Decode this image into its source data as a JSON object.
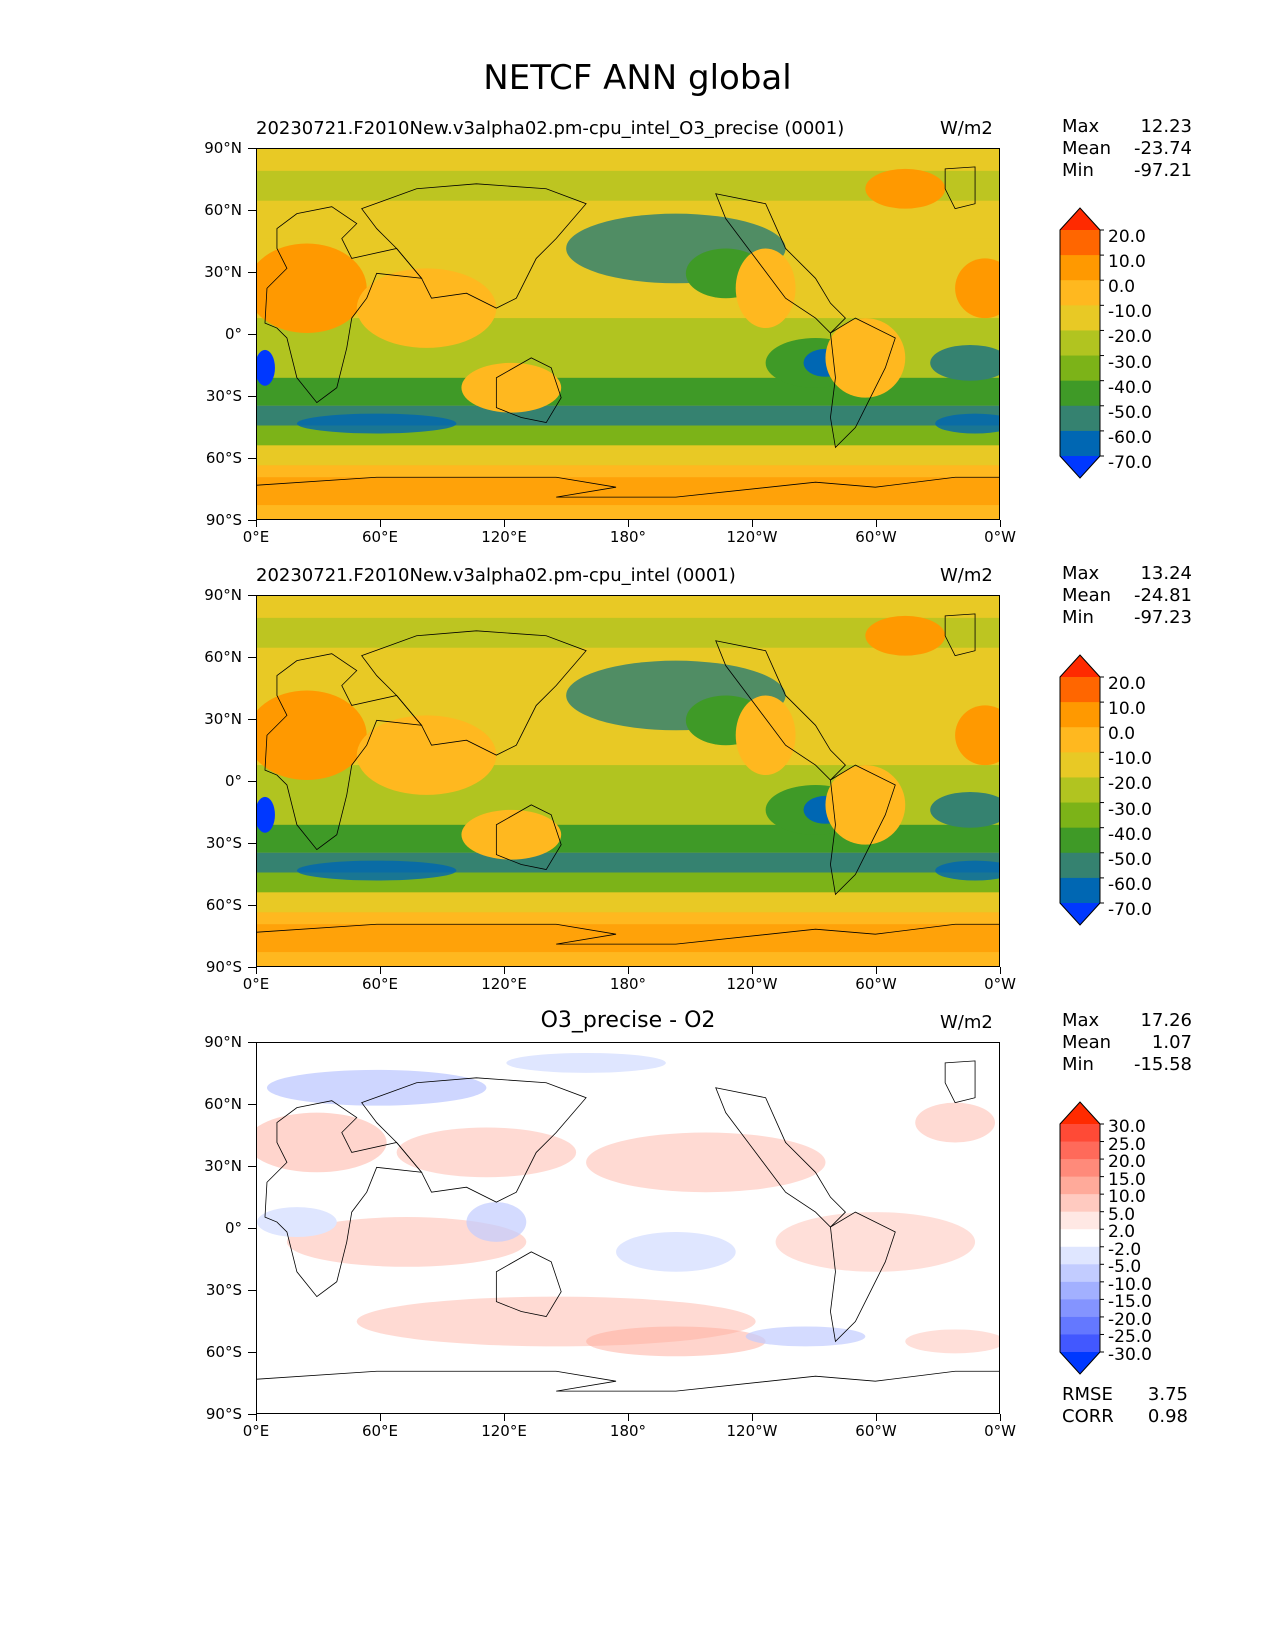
{
  "figure_title": "NETCF ANN global",
  "panels": [
    {
      "title": "20230721.F2010New.v3alpha02.pm-cpu_intel_O3_precise (0001)",
      "units": "W/m2",
      "stats": [
        {
          "label": "Max",
          "value": "12.23"
        },
        {
          "label": "Mean",
          "value": "-23.74"
        },
        {
          "label": "Min",
          "value": "-97.21"
        }
      ],
      "colorbar": {
        "labels": [
          "20.0",
          "10.0",
          "0.0",
          "-10.0",
          "-20.0",
          "-30.0",
          "-40.0",
          "-50.0",
          "-60.0",
          "-70.0"
        ],
        "colors": [
          "#ff2a00",
          "#ff6600",
          "#ff9900",
          "#ffb81f",
          "#e8c925",
          "#b1c420",
          "#7cb318",
          "#3f9a27",
          "#358270",
          "#0067b3",
          "#0038ff"
        ]
      }
    },
    {
      "title": "20230721.F2010New.v3alpha02.pm-cpu_intel (0001)",
      "units": "W/m2",
      "stats": [
        {
          "label": "Max",
          "value": "13.24"
        },
        {
          "label": "Mean",
          "value": "-24.81"
        },
        {
          "label": "Min",
          "value": "-97.23"
        }
      ],
      "colorbar": {
        "labels": [
          "20.0",
          "10.0",
          "0.0",
          "-10.0",
          "-20.0",
          "-30.0",
          "-40.0",
          "-50.0",
          "-60.0",
          "-70.0"
        ],
        "colors": [
          "#ff2a00",
          "#ff6600",
          "#ff9900",
          "#ffb81f",
          "#e8c925",
          "#b1c420",
          "#7cb318",
          "#3f9a27",
          "#358270",
          "#0067b3",
          "#0038ff"
        ]
      }
    },
    {
      "title": "O3_precise - O2",
      "units": "W/m2",
      "stats": [
        {
          "label": "Max",
          "value": "17.26"
        },
        {
          "label": "Mean",
          "value": "1.07"
        },
        {
          "label": "Min",
          "value": "-15.58"
        }
      ],
      "colorbar": {
        "labels": [
          "30.0",
          "25.0",
          "20.0",
          "15.0",
          "10.0",
          "5.0",
          "2.0",
          "-2.0",
          "-5.0",
          "-10.0",
          "-15.0",
          "-20.0",
          "-25.0",
          "-30.0"
        ],
        "colors": [
          "#ff2a00",
          "#ff4a36",
          "#ff6a5a",
          "#ff8a7a",
          "#ffaa9a",
          "#ffcac0",
          "#ffe8e4",
          "#ffffff",
          "#dfe6ff",
          "#c2ccff",
          "#a2b0ff",
          "#8494ff",
          "#6478ff",
          "#4258ff",
          "#0038ff"
        ]
      },
      "bottom_stats": [
        {
          "label": "RMSE",
          "value": "3.75"
        },
        {
          "label": "CORR",
          "value": "0.98"
        }
      ]
    }
  ],
  "axes": {
    "y_ticks": [
      "90°N",
      "60°N",
      "30°N",
      "0°",
      "30°S",
      "60°S",
      "90°S"
    ],
    "x_ticks": [
      "0°E",
      "60°E",
      "120°E",
      "180°",
      "120°W",
      "60°W",
      "0°W"
    ]
  }
}
